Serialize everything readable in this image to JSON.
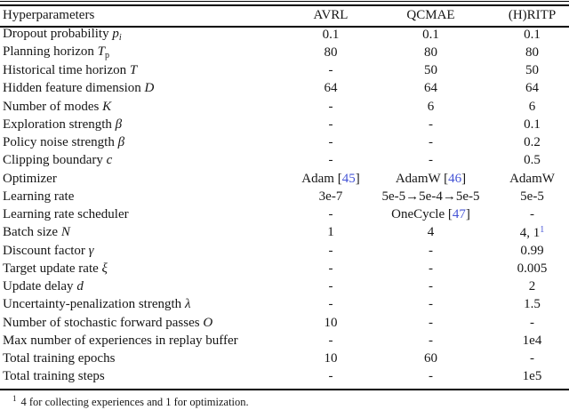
{
  "table": {
    "citation_color": "#4554d6",
    "columns": [
      "Hyperparameters",
      "AVRL",
      "QCMAE",
      "(H)RITP"
    ],
    "rows": [
      {
        "cells": [
          [
            {
              "t": "Dropout probability ",
              "s": "plain"
            },
            {
              "t": "p",
              "s": "var"
            },
            {
              "t": "i",
              "s": "sub"
            }
          ],
          [
            {
              "t": "0.1",
              "s": "plain"
            }
          ],
          [
            {
              "t": "0.1",
              "s": "plain"
            }
          ],
          [
            {
              "t": "0.1",
              "s": "plain"
            }
          ]
        ]
      },
      {
        "cells": [
          [
            {
              "t": "Planning horizon ",
              "s": "plain"
            },
            {
              "t": "T",
              "s": "var"
            },
            {
              "t": "p",
              "s": "rsub"
            }
          ],
          [
            {
              "t": "80",
              "s": "plain"
            }
          ],
          [
            {
              "t": "80",
              "s": "plain"
            }
          ],
          [
            {
              "t": "80",
              "s": "plain"
            }
          ]
        ]
      },
      {
        "cells": [
          [
            {
              "t": "Historical time horizon ",
              "s": "plain"
            },
            {
              "t": "T",
              "s": "var"
            }
          ],
          [
            {
              "t": "-",
              "s": "plain"
            }
          ],
          [
            {
              "t": "50",
              "s": "plain"
            }
          ],
          [
            {
              "t": "50",
              "s": "plain"
            }
          ]
        ]
      },
      {
        "cells": [
          [
            {
              "t": "Hidden feature dimension ",
              "s": "plain"
            },
            {
              "t": "D",
              "s": "var"
            }
          ],
          [
            {
              "t": "64",
              "s": "plain"
            }
          ],
          [
            {
              "t": "64",
              "s": "plain"
            }
          ],
          [
            {
              "t": "64",
              "s": "plain"
            }
          ]
        ]
      },
      {
        "cells": [
          [
            {
              "t": "Number of modes ",
              "s": "plain"
            },
            {
              "t": "K",
              "s": "var"
            }
          ],
          [
            {
              "t": "-",
              "s": "plain"
            }
          ],
          [
            {
              "t": "6",
              "s": "plain"
            }
          ],
          [
            {
              "t": "6",
              "s": "plain"
            }
          ]
        ]
      },
      {
        "cells": [
          [
            {
              "t": "Exploration strength ",
              "s": "plain"
            },
            {
              "t": "β",
              "s": "var"
            }
          ],
          [
            {
              "t": "-",
              "s": "plain"
            }
          ],
          [
            {
              "t": "-",
              "s": "plain"
            }
          ],
          [
            {
              "t": "0.1",
              "s": "plain"
            }
          ]
        ]
      },
      {
        "cells": [
          [
            {
              "t": "Policy noise strength ",
              "s": "plain"
            },
            {
              "t": "β",
              "s": "var"
            }
          ],
          [
            {
              "t": "-",
              "s": "plain"
            }
          ],
          [
            {
              "t": "-",
              "s": "plain"
            }
          ],
          [
            {
              "t": "0.2",
              "s": "plain"
            }
          ]
        ]
      },
      {
        "cells": [
          [
            {
              "t": "Clipping boundary ",
              "s": "plain"
            },
            {
              "t": "c",
              "s": "var"
            }
          ],
          [
            {
              "t": "-",
              "s": "plain"
            }
          ],
          [
            {
              "t": "-",
              "s": "plain"
            }
          ],
          [
            {
              "t": "0.5",
              "s": "plain"
            }
          ]
        ]
      },
      {
        "cells": [
          [
            {
              "t": "Optimizer",
              "s": "plain"
            }
          ],
          [
            {
              "t": "Adam [",
              "s": "plain"
            },
            {
              "t": "45",
              "s": "cite"
            },
            {
              "t": "]",
              "s": "plain"
            }
          ],
          [
            {
              "t": "AdamW [",
              "s": "plain"
            },
            {
              "t": "46",
              "s": "cite"
            },
            {
              "t": "]",
              "s": "plain"
            }
          ],
          [
            {
              "t": "AdamW",
              "s": "plain"
            }
          ]
        ]
      },
      {
        "cells": [
          [
            {
              "t": "Learning rate",
              "s": "plain"
            }
          ],
          [
            {
              "t": "3e-7",
              "s": "plain"
            }
          ],
          [
            {
              "t": "5e-5→5e-4→5e-5",
              "s": "plain"
            }
          ],
          [
            {
              "t": "5e-5",
              "s": "plain"
            }
          ]
        ]
      },
      {
        "cells": [
          [
            {
              "t": "Learning rate scheduler",
              "s": "plain"
            }
          ],
          [
            {
              "t": "-",
              "s": "plain"
            }
          ],
          [
            {
              "t": "OneCycle [",
              "s": "plain"
            },
            {
              "t": "47",
              "s": "cite"
            },
            {
              "t": "]",
              "s": "plain"
            }
          ],
          [
            {
              "t": "-",
              "s": "plain"
            }
          ]
        ]
      },
      {
        "cells": [
          [
            {
              "t": "Batch size ",
              "s": "plain"
            },
            {
              "t": "N",
              "s": "var"
            }
          ],
          [
            {
              "t": "1",
              "s": "plain"
            }
          ],
          [
            {
              "t": "4",
              "s": "plain"
            }
          ],
          [
            {
              "t": "4, 1",
              "s": "plain"
            },
            {
              "t": "1",
              "s": "supcite"
            }
          ]
        ]
      },
      {
        "cells": [
          [
            {
              "t": "Discount factor ",
              "s": "plain"
            },
            {
              "t": "γ",
              "s": "var"
            }
          ],
          [
            {
              "t": "-",
              "s": "plain"
            }
          ],
          [
            {
              "t": "-",
              "s": "plain"
            }
          ],
          [
            {
              "t": "0.99",
              "s": "plain"
            }
          ]
        ]
      },
      {
        "cells": [
          [
            {
              "t": "Target update rate ",
              "s": "plain"
            },
            {
              "t": "ξ",
              "s": "var"
            }
          ],
          [
            {
              "t": "-",
              "s": "plain"
            }
          ],
          [
            {
              "t": "-",
              "s": "plain"
            }
          ],
          [
            {
              "t": "0.005",
              "s": "plain"
            }
          ]
        ]
      },
      {
        "cells": [
          [
            {
              "t": "Update delay ",
              "s": "plain"
            },
            {
              "t": "d",
              "s": "var"
            }
          ],
          [
            {
              "t": "-",
              "s": "plain"
            }
          ],
          [
            {
              "t": "-",
              "s": "plain"
            }
          ],
          [
            {
              "t": "2",
              "s": "plain"
            }
          ]
        ]
      },
      {
        "cells": [
          [
            {
              "t": "Uncertainty-penalization strength ",
              "s": "plain"
            },
            {
              "t": "λ",
              "s": "var"
            }
          ],
          [
            {
              "t": "-",
              "s": "plain"
            }
          ],
          [
            {
              "t": "-",
              "s": "plain"
            }
          ],
          [
            {
              "t": "1.5",
              "s": "plain"
            }
          ]
        ]
      },
      {
        "cells": [
          [
            {
              "t": "Number of stochastic forward passes ",
              "s": "plain"
            },
            {
              "t": "O",
              "s": "var"
            }
          ],
          [
            {
              "t": "10",
              "s": "plain"
            }
          ],
          [
            {
              "t": "-",
              "s": "plain"
            }
          ],
          [
            {
              "t": "-",
              "s": "plain"
            }
          ]
        ]
      },
      {
        "cells": [
          [
            {
              "t": "Max number of experiences in replay buffer",
              "s": "plain"
            }
          ],
          [
            {
              "t": "-",
              "s": "plain"
            }
          ],
          [
            {
              "t": "-",
              "s": "plain"
            }
          ],
          [
            {
              "t": "1e4",
              "s": "plain"
            }
          ]
        ]
      },
      {
        "cells": [
          [
            {
              "t": "Total training epochs",
              "s": "plain"
            }
          ],
          [
            {
              "t": "10",
              "s": "plain"
            }
          ],
          [
            {
              "t": "60",
              "s": "plain"
            }
          ],
          [
            {
              "t": "-",
              "s": "plain"
            }
          ]
        ]
      },
      {
        "cells": [
          [
            {
              "t": "Total training steps",
              "s": "plain"
            }
          ],
          [
            {
              "t": "-",
              "s": "plain"
            }
          ],
          [
            {
              "t": "-",
              "s": "plain"
            }
          ],
          [
            {
              "t": "1e5",
              "s": "plain"
            }
          ]
        ]
      }
    ],
    "footnote": {
      "marker": "1",
      "text": "4 for collecting experiences and 1 for optimization."
    }
  }
}
